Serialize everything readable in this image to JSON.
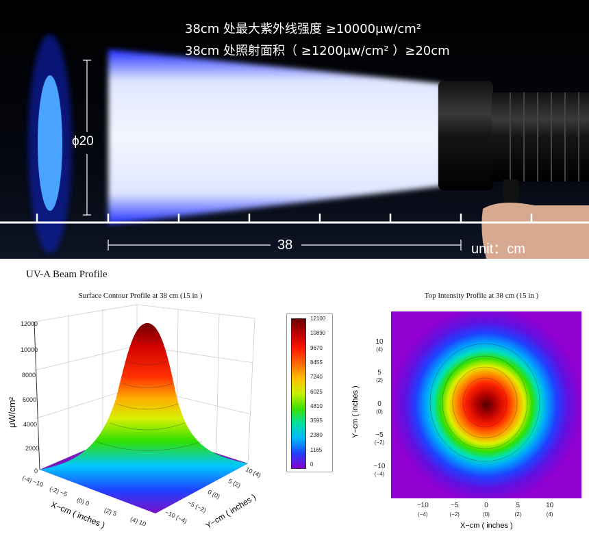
{
  "banner": {
    "spec_line1": "38cm 处最大紫外线强度 ≥10000μw/cm²",
    "spec_line2": "38cm 处照射面积（ ≥1200μw/cm² ）≥20cm",
    "diameter_label": "ϕ20",
    "distance_label": "38",
    "unit_label": "unit：cm"
  },
  "section_title": "UV-A Beam Profile",
  "chart_data": [
    {
      "type": "surface3d",
      "title": "Surface Contour Profile at 38 cm (15 in )",
      "zlabel": "μW/cm²",
      "xlabel": "X−cm ( inches )",
      "ylabel": "Y−cm ( inches )",
      "z_ticks": [
        "0",
        "2000",
        "4000",
        "6000",
        "8000",
        "10000",
        "12000"
      ],
      "x_ticks": [
        "(-4) −10",
        "(-2) −5",
        "(0) 0",
        "(2) 5",
        "(4) 10"
      ],
      "y_ticks": [
        "10 (4)",
        "5 (2)",
        "0 (0)",
        "−5 (−2)",
        "−10 (−4)"
      ],
      "zlim": [
        0,
        12100
      ],
      "peak": 12100,
      "grid": true
    },
    {
      "type": "colorbar",
      "ticks": [
        "12100",
        "10890",
        "9670",
        "8455",
        "7240",
        "6025",
        "4810",
        "3595",
        "2380",
        "1165",
        "0"
      ],
      "colors": [
        "#6a0000",
        "#c00000",
        "#ff1a00",
        "#ff6a00",
        "#ffc000",
        "#c8f000",
        "#40e000",
        "#00e0a0",
        "#00b8ff",
        "#2040ff",
        "#8a00d0"
      ]
    },
    {
      "type": "heatmap",
      "title": "Top Intensity Profile at 38 cm (15 in )",
      "xlabel": "X−cm ( inches )",
      "ylabel": "Y−cm ( inches )",
      "x_ticks": [
        {
          "cm": "−10",
          "in": "(−4)"
        },
        {
          "cm": "−5",
          "in": "(−2)"
        },
        {
          "cm": "0",
          "in": "(0)"
        },
        {
          "cm": "5",
          "in": "(2)"
        },
        {
          "cm": "10",
          "in": "(4)"
        }
      ],
      "y_ticks": [
        {
          "cm": "10",
          "in": "(4)"
        },
        {
          "cm": "5",
          "in": "(2)"
        },
        {
          "cm": "0",
          "in": "(0)"
        },
        {
          "cm": "−5",
          "in": "(−2)"
        },
        {
          "cm": "−10",
          "in": "(−4)"
        }
      ],
      "xlim": [
        -15,
        15
      ],
      "ylim": [
        -15,
        15
      ],
      "peak": 12100
    }
  ]
}
